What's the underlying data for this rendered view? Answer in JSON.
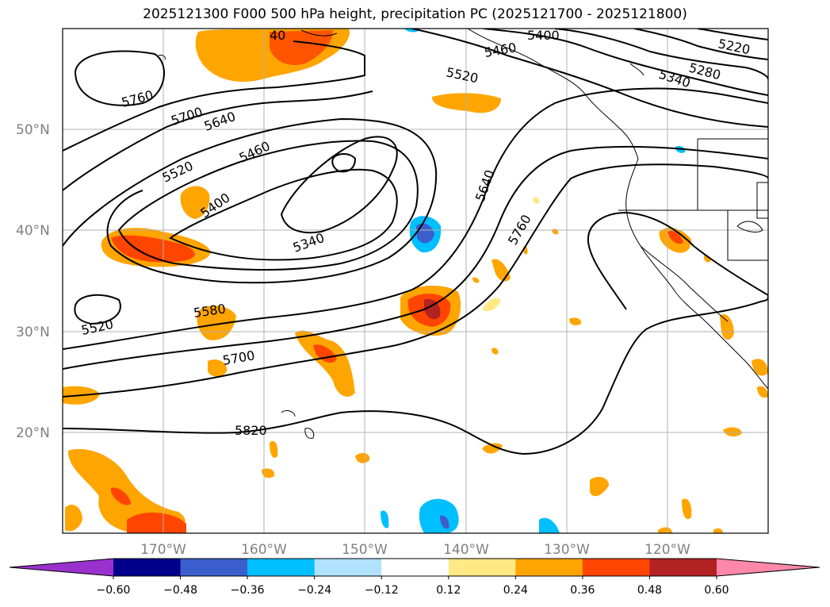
{
  "title": "2025121300 F000 500 hPa height, precipitation PC (2025121700 - 2025121800)",
  "lat_labels": [
    "50°N",
    "40°N",
    "30°N",
    "20°N"
  ],
  "lon_labels": [
    "170°W",
    "160°W",
    "150°W",
    "140°W",
    "130°W",
    "120°W"
  ],
  "contour_labels": [
    "5760",
    "5700",
    "5640",
    "5520",
    "5460",
    "5400",
    "5340",
    "5580",
    "5520",
    "5700",
    "5820",
    "5640",
    "5760",
    "5520",
    "5400",
    "5460",
    "5220",
    "5280",
    "5340",
    "40"
  ],
  "colorbar": {
    "ticks": [
      "−0.60",
      "−0.48",
      "−0.36",
      "−0.24",
      "−0.12",
      "0.12",
      "0.24",
      "0.36",
      "0.48",
      "0.60"
    ],
    "colors": [
      "#9932cc",
      "#00008b",
      "#3a5fcd",
      "#00bfff",
      "#b0e2ff",
      "#ffffff",
      "#ffe985",
      "#ffa500",
      "#ff4500",
      "#b22222",
      "#ff88aa"
    ]
  },
  "colors": {
    "contour": "#000000",
    "grid": "#b0b0b0",
    "axis_label": "#808080",
    "precip_light": "#ffe985",
    "precip_mid": "#ffa500",
    "precip_high": "#ff4500",
    "precip_max": "#b22222",
    "neg_light": "#00bfff",
    "neg_mid": "#3a5fcd"
  }
}
